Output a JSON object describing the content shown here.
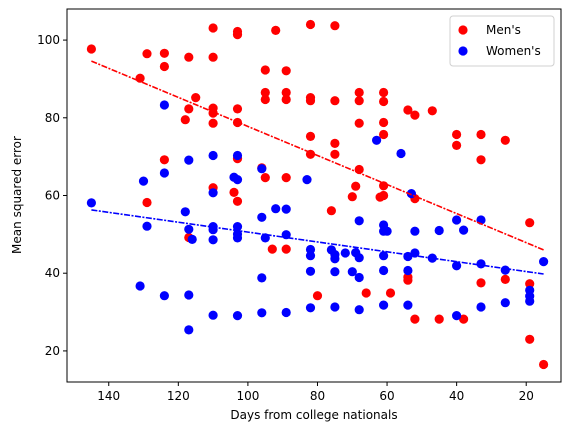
{
  "chart_data": {
    "type": "scatter",
    "xlabel": "Days from college nationals",
    "ylabel": "Mean squared error",
    "xlim": [
      152,
      10
    ],
    "ylim": [
      12,
      108
    ],
    "x_inverted": true,
    "x_ticks": [
      140,
      120,
      100,
      80,
      60,
      40,
      20
    ],
    "y_ticks": [
      20,
      40,
      60,
      80,
      100
    ],
    "legend_position": "top-right",
    "series": [
      {
        "name": "Men's",
        "color": "#ff0000",
        "points": [
          [
            145,
            97.7
          ],
          [
            131,
            90.2
          ],
          [
            129,
            96.5
          ],
          [
            129,
            58.2
          ],
          [
            124,
            96.6
          ],
          [
            124,
            93.2
          ],
          [
            124,
            69.2
          ],
          [
            118,
            79.5
          ],
          [
            117,
            82.3
          ],
          [
            117,
            95.6
          ],
          [
            117,
            49.2
          ],
          [
            115,
            85.2
          ],
          [
            110,
            103.1
          ],
          [
            110,
            95.6
          ],
          [
            110,
            82.5
          ],
          [
            110,
            81.2
          ],
          [
            110,
            78.6
          ],
          [
            110,
            62.0
          ],
          [
            104,
            60.8
          ],
          [
            103,
            102.2
          ],
          [
            103,
            101.4
          ],
          [
            103,
            82.3
          ],
          [
            103,
            78.8
          ],
          [
            103,
            69.5
          ],
          [
            103,
            58.5
          ],
          [
            96,
            67.1
          ],
          [
            95,
            92.3
          ],
          [
            95,
            86.5
          ],
          [
            95,
            84.7
          ],
          [
            95,
            64.6
          ],
          [
            93,
            46.2
          ],
          [
            92,
            102.5
          ],
          [
            89,
            92.1
          ],
          [
            89,
            86.5
          ],
          [
            89,
            84.7
          ],
          [
            89,
            64.6
          ],
          [
            89,
            46.2
          ],
          [
            82,
            104.0
          ],
          [
            82,
            85.2
          ],
          [
            82,
            84.4
          ],
          [
            82,
            75.2
          ],
          [
            82,
            70.6
          ],
          [
            80,
            34.2
          ],
          [
            76,
            56.1
          ],
          [
            75,
            103.7
          ],
          [
            75,
            84.4
          ],
          [
            75,
            73.4
          ],
          [
            75,
            70.6
          ],
          [
            70,
            59.7
          ],
          [
            69,
            62.4
          ],
          [
            68,
            86.5
          ],
          [
            68,
            84.4
          ],
          [
            68,
            78.6
          ],
          [
            68,
            66.7
          ],
          [
            66,
            34.9
          ],
          [
            62,
            59.6
          ],
          [
            61,
            86.5
          ],
          [
            61,
            84.2
          ],
          [
            61,
            78.8
          ],
          [
            61,
            75.7
          ],
          [
            61,
            62.5
          ],
          [
            61,
            60.0
          ],
          [
            59,
            34.9
          ],
          [
            54,
            82.0
          ],
          [
            54,
            39.0
          ],
          [
            54,
            38.2
          ],
          [
            52,
            80.7
          ],
          [
            52,
            59.2
          ],
          [
            52,
            28.2
          ],
          [
            47,
            81.8
          ],
          [
            45,
            28.2
          ],
          [
            40,
            75.7
          ],
          [
            40,
            72.9
          ],
          [
            38,
            28.2
          ],
          [
            33,
            75.7
          ],
          [
            33,
            69.2
          ],
          [
            33,
            37.5
          ],
          [
            26,
            74.2
          ],
          [
            26,
            38.4
          ],
          [
            19,
            53.0
          ],
          [
            19,
            37.3
          ],
          [
            19,
            23.0
          ],
          [
            15,
            16.5
          ]
        ],
        "trendline": [
          [
            145,
            94.6
          ],
          [
            15,
            46.0
          ]
        ]
      },
      {
        "name": "Women's",
        "color": "#0000ff",
        "points": [
          [
            145,
            58.1
          ],
          [
            131,
            36.7
          ],
          [
            130,
            63.7
          ],
          [
            129,
            52.1
          ],
          [
            124,
            83.3
          ],
          [
            124,
            65.8
          ],
          [
            124,
            34.2
          ],
          [
            118,
            55.8
          ],
          [
            117,
            69.1
          ],
          [
            117,
            51.3
          ],
          [
            117,
            34.4
          ],
          [
            117,
            25.4
          ],
          [
            116,
            48.7
          ],
          [
            110,
            70.3
          ],
          [
            110,
            60.7
          ],
          [
            110,
            52.0
          ],
          [
            110,
            51.2
          ],
          [
            110,
            48.6
          ],
          [
            110,
            29.2
          ],
          [
            104,
            64.7
          ],
          [
            103,
            70.3
          ],
          [
            103,
            64.1
          ],
          [
            103,
            52.0
          ],
          [
            103,
            50.1
          ],
          [
            103,
            49.1
          ],
          [
            103,
            29.1
          ],
          [
            96,
            66.9
          ],
          [
            96,
            54.4
          ],
          [
            96,
            38.8
          ],
          [
            96,
            29.8
          ],
          [
            95,
            49.1
          ],
          [
            92,
            56.6
          ],
          [
            89,
            56.5
          ],
          [
            89,
            49.9
          ],
          [
            89,
            29.9
          ],
          [
            83,
            64.1
          ],
          [
            82,
            46.1
          ],
          [
            82,
            44.5
          ],
          [
            82,
            40.5
          ],
          [
            82,
            31.1
          ],
          [
            76,
            46.0
          ],
          [
            75,
            44.8
          ],
          [
            75,
            43.7
          ],
          [
            75,
            40.4
          ],
          [
            75,
            31.3
          ],
          [
            72,
            45.2
          ],
          [
            70,
            40.4
          ],
          [
            69,
            45.3
          ],
          [
            68,
            53.5
          ],
          [
            68,
            44.0
          ],
          [
            68,
            38.9
          ],
          [
            68,
            30.6
          ],
          [
            63,
            74.2
          ],
          [
            61,
            52.4
          ],
          [
            61,
            50.8
          ],
          [
            61,
            44.5
          ],
          [
            61,
            40.7
          ],
          [
            61,
            31.8
          ],
          [
            60,
            50.8
          ],
          [
            56,
            70.8
          ],
          [
            54,
            44.3
          ],
          [
            54,
            40.7
          ],
          [
            54,
            31.8
          ],
          [
            53,
            60.5
          ],
          [
            52,
            50.8
          ],
          [
            52,
            45.2
          ],
          [
            47,
            43.9
          ],
          [
            45,
            51.0
          ],
          [
            40,
            53.7
          ],
          [
            40,
            41.9
          ],
          [
            40,
            29.1
          ],
          [
            38,
            51.1
          ],
          [
            33,
            53.7
          ],
          [
            33,
            42.4
          ],
          [
            33,
            31.3
          ],
          [
            26,
            40.8
          ],
          [
            26,
            32.4
          ],
          [
            19,
            35.6
          ],
          [
            19,
            34.1
          ],
          [
            19,
            32.8
          ],
          [
            15,
            43.0
          ]
        ],
        "trendline": [
          [
            145,
            56.3
          ],
          [
            15,
            39.8
          ]
        ]
      }
    ]
  }
}
